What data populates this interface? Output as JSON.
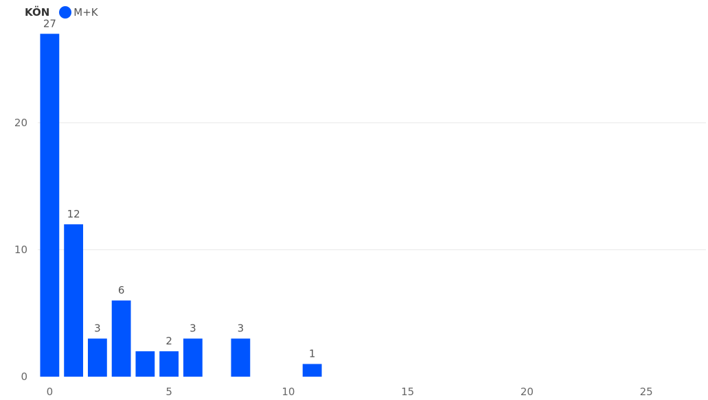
{
  "chart_data": {
    "type": "bar",
    "legend": {
      "title": "KÖN",
      "series_name": "M+K",
      "position": "top-left"
    },
    "color": "#0055FF",
    "x": [
      0,
      1,
      2,
      3,
      4,
      5,
      6,
      8,
      11
    ],
    "values": [
      27,
      12,
      3,
      6,
      2,
      2,
      3,
      3,
      1
    ],
    "data_labels": [
      "27",
      "12",
      "3",
      "6",
      "",
      "2",
      "3",
      "3",
      "1"
    ],
    "xlim": [
      -0.5,
      27.5
    ],
    "ylim": [
      0,
      27.5
    ],
    "xticks": [
      0,
      5,
      10,
      15,
      20,
      25
    ],
    "yticks": [
      0,
      10,
      20
    ],
    "grid": true
  }
}
